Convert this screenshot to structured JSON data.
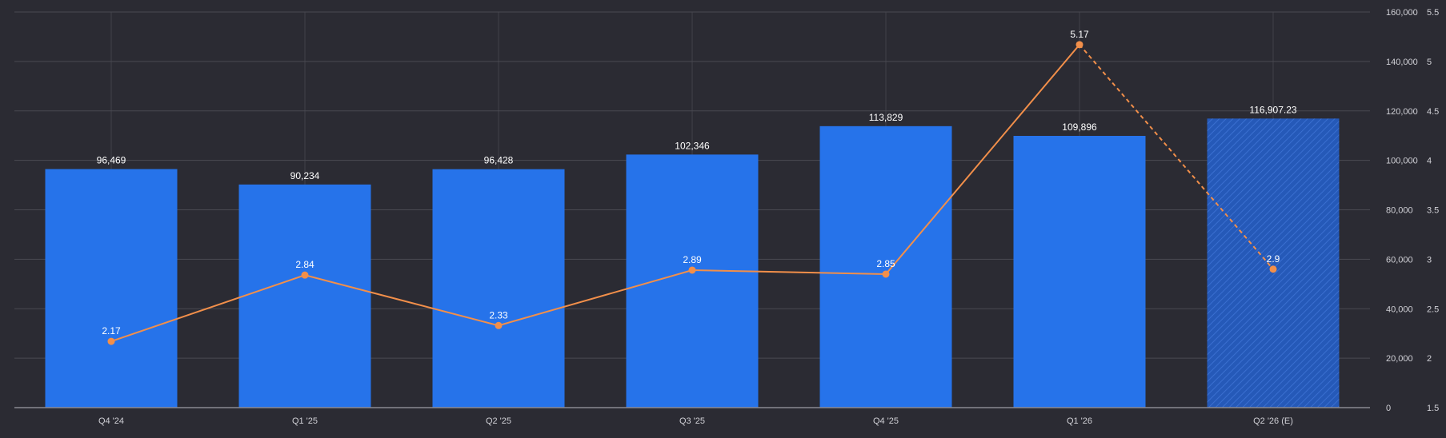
{
  "chart_data": {
    "type": "bar",
    "categories": [
      "Q4 '24",
      "Q1 '25",
      "Q2 '25",
      "Q3 '25",
      "Q4 '25",
      "Q1 '26",
      "Q2 '26 (E)"
    ],
    "series": [
      {
        "type": "bar",
        "values": [
          96469,
          90234,
          96428,
          102346,
          113829,
          109896,
          116907.23
        ],
        "labels": [
          "96,469",
          "90,234",
          "96,428",
          "102,346",
          "113,829",
          "109,896",
          "116,907.23"
        ],
        "estimated": [
          false,
          false,
          false,
          false,
          false,
          false,
          true
        ],
        "color": "#2673ea"
      },
      {
        "type": "line",
        "values": [
          2.17,
          2.84,
          2.33,
          2.89,
          2.85,
          5.17,
          2.9
        ],
        "labels": [
          "2.17",
          "2.84",
          "2.33",
          "2.89",
          "2.85",
          "5.17",
          "2.9"
        ],
        "estimated_from_index": 5,
        "color": "#f28f4a"
      }
    ],
    "y_left": {
      "lim": [
        0,
        160000
      ],
      "ticks": [
        0,
        20000,
        40000,
        60000,
        80000,
        100000,
        120000,
        140000,
        160000
      ],
      "tick_labels": [
        "0",
        "20,000",
        "40,000",
        "60,000",
        "80,000",
        "100,000",
        "120,000",
        "140,000",
        "160,000"
      ]
    },
    "y_right": {
      "lim": [
        1.5,
        5.5
      ],
      "ticks": [
        1.5,
        2,
        2.5,
        3,
        3.5,
        4,
        4.5,
        5,
        5.5
      ],
      "tick_labels": [
        "1.5",
        "2",
        "2.5",
        "3",
        "3.5",
        "4",
        "4.5",
        "5",
        "5.5"
      ]
    },
    "grid": true,
    "legend": "none",
    "title": "",
    "xlabel": "",
    "ylabel": ""
  },
  "colors": {
    "background": "#2b2b33",
    "grid": "#4a4a52",
    "axis": "#8a8a92",
    "text": "#ffffff",
    "tick_text": "#d0d0d6",
    "bar": "#2673ea",
    "line": "#f28f4a"
  }
}
